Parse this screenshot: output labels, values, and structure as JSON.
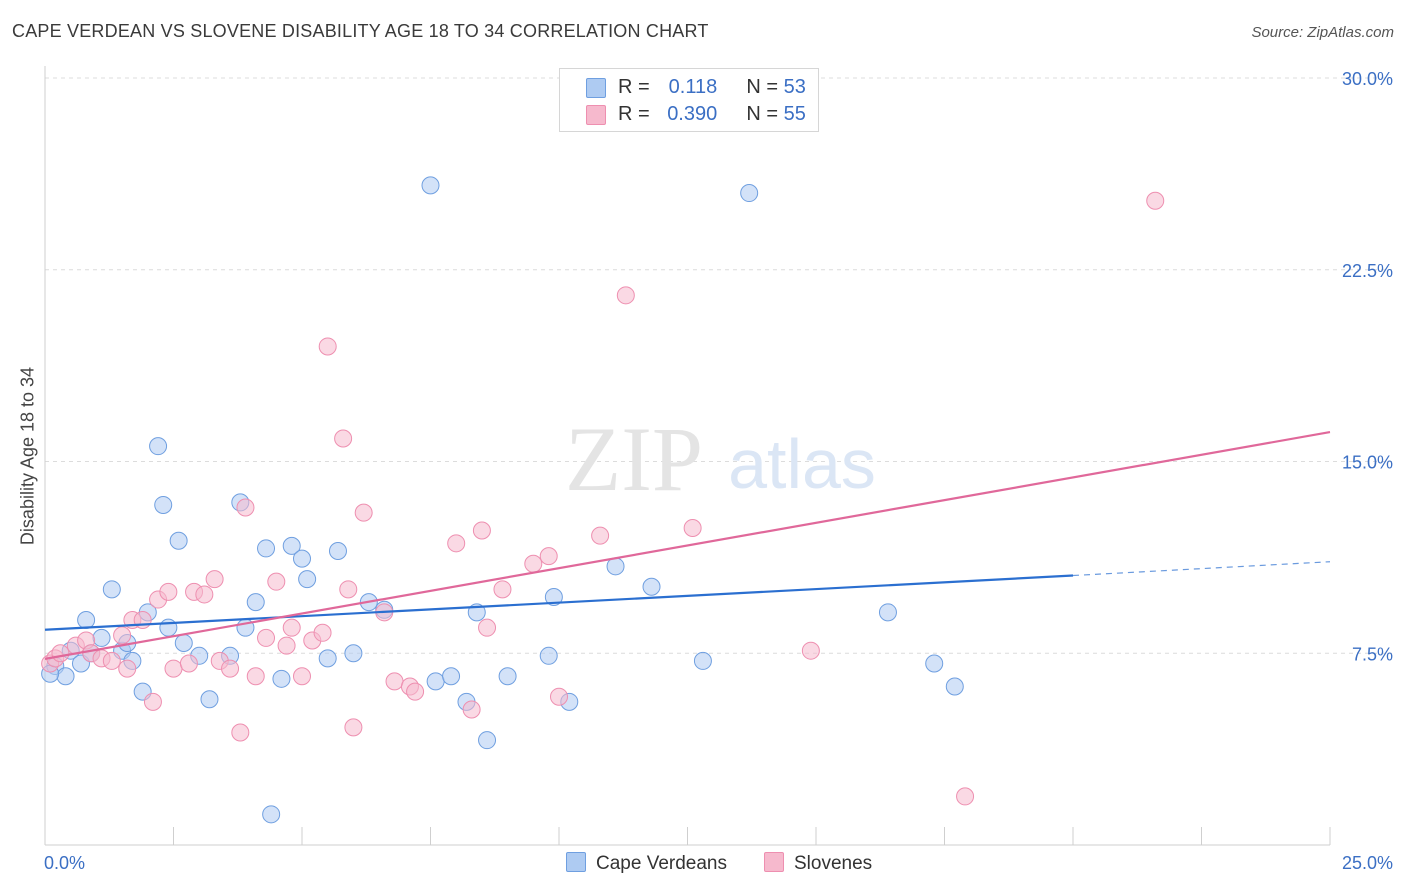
{
  "title": "CAPE VERDEAN VS SLOVENE DISABILITY AGE 18 TO 34 CORRELATION CHART",
  "source": "Source: ZipAtlas.com",
  "watermark": {
    "zip": "ZIP",
    "atlas": "atlas"
  },
  "legend": {
    "rows": [
      {
        "r_label": "R =",
        "r_value": "0.118",
        "n_label": "N =",
        "n_value": "53",
        "color": "#aecbf2"
      },
      {
        "r_label": "R =",
        "r_value": "0.390",
        "n_label": "N =",
        "n_value": "55",
        "color": "#f6b9cd"
      }
    ]
  },
  "bottom_legend": [
    {
      "label": "Cape Verdeans",
      "color": "#aecbf2"
    },
    {
      "label": "Slovenes",
      "color": "#f6b9cd"
    }
  ],
  "chart_data": {
    "type": "scatter",
    "title": "CAPE VERDEAN VS SLOVENE DISABILITY AGE 18 TO 34 CORRELATION CHART",
    "xlabel": "",
    "ylabel": "Disability Age 18 to 34",
    "xlim": [
      0,
      25
    ],
    "ylim": [
      0,
      30
    ],
    "x_tick_labels": [
      "0.0%",
      "25.0%"
    ],
    "y_ticks": [
      7.5,
      15.0,
      22.5,
      30.0
    ],
    "y_tick_labels": [
      "7.5%",
      "15.0%",
      "22.5%",
      "30.0%"
    ],
    "grid": true,
    "legend_position": "top-center",
    "series": [
      {
        "name": "Cape Verdeans",
        "color": "#6f9fe0",
        "fill": "#aecbf2",
        "trend_color": "#2b6fd0",
        "trend": {
          "x": [
            0,
            20
          ],
          "y": [
            8.42,
            10.54
          ]
        },
        "trend_extension": {
          "x": [
            20,
            25
          ],
          "y": [
            10.54,
            11.08
          ]
        },
        "points": [
          [
            0.2,
            7.0
          ],
          [
            0.4,
            6.6
          ],
          [
            0.5,
            7.6
          ],
          [
            0.7,
            7.1
          ],
          [
            0.8,
            8.8
          ],
          [
            0.9,
            7.5
          ],
          [
            1.1,
            8.1
          ],
          [
            1.3,
            10.0
          ],
          [
            1.5,
            7.6
          ],
          [
            1.6,
            7.9
          ],
          [
            1.7,
            7.2
          ],
          [
            1.9,
            6.0
          ],
          [
            2.0,
            9.1
          ],
          [
            2.2,
            15.6
          ],
          [
            2.3,
            13.3
          ],
          [
            2.4,
            8.5
          ],
          [
            2.6,
            11.9
          ],
          [
            2.7,
            7.9
          ],
          [
            3.0,
            7.4
          ],
          [
            3.2,
            5.7
          ],
          [
            3.6,
            7.4
          ],
          [
            3.8,
            13.4
          ],
          [
            3.9,
            8.5
          ],
          [
            4.1,
            9.5
          ],
          [
            4.3,
            11.6
          ],
          [
            4.4,
            1.2
          ],
          [
            4.6,
            6.5
          ],
          [
            4.8,
            11.7
          ],
          [
            5.0,
            11.2
          ],
          [
            5.1,
            10.4
          ],
          [
            5.5,
            7.3
          ],
          [
            5.7,
            11.5
          ],
          [
            6.0,
            7.5
          ],
          [
            6.3,
            9.5
          ],
          [
            6.6,
            9.2
          ],
          [
            7.5,
            25.8
          ],
          [
            7.6,
            6.4
          ],
          [
            7.9,
            6.6
          ],
          [
            8.2,
            5.6
          ],
          [
            8.4,
            9.1
          ],
          [
            8.6,
            4.1
          ],
          [
            9.0,
            6.6
          ],
          [
            9.8,
            7.4
          ],
          [
            9.9,
            9.7
          ],
          [
            10.2,
            5.6
          ],
          [
            11.1,
            10.9
          ],
          [
            11.8,
            10.1
          ],
          [
            12.8,
            7.2
          ],
          [
            13.7,
            25.5
          ],
          [
            16.4,
            9.1
          ],
          [
            17.3,
            7.1
          ],
          [
            17.7,
            6.2
          ],
          [
            0.1,
            6.7
          ]
        ]
      },
      {
        "name": "Slovenes",
        "color": "#ee8fb0",
        "fill": "#f6b9cd",
        "trend_color": "#e0689a",
        "trend": {
          "x": [
            0,
            25
          ],
          "y": [
            7.28,
            16.15
          ]
        },
        "points": [
          [
            0.1,
            7.1
          ],
          [
            0.2,
            7.3
          ],
          [
            0.3,
            7.5
          ],
          [
            0.6,
            7.8
          ],
          [
            0.8,
            8.0
          ],
          [
            0.9,
            7.5
          ],
          [
            1.1,
            7.3
          ],
          [
            1.3,
            7.2
          ],
          [
            1.5,
            8.2
          ],
          [
            1.6,
            6.9
          ],
          [
            1.7,
            8.8
          ],
          [
            1.9,
            8.8
          ],
          [
            2.1,
            5.6
          ],
          [
            2.2,
            9.6
          ],
          [
            2.4,
            9.9
          ],
          [
            2.5,
            6.9
          ],
          [
            2.8,
            7.1
          ],
          [
            2.9,
            9.9
          ],
          [
            3.1,
            9.8
          ],
          [
            3.3,
            10.4
          ],
          [
            3.4,
            7.2
          ],
          [
            3.6,
            6.9
          ],
          [
            3.8,
            4.4
          ],
          [
            3.9,
            13.2
          ],
          [
            4.1,
            6.6
          ],
          [
            4.3,
            8.1
          ],
          [
            4.5,
            10.3
          ],
          [
            4.7,
            7.8
          ],
          [
            4.8,
            8.5
          ],
          [
            5.0,
            6.6
          ],
          [
            5.2,
            8.0
          ],
          [
            5.4,
            8.3
          ],
          [
            5.5,
            19.5
          ],
          [
            5.8,
            15.9
          ],
          [
            5.9,
            10.0
          ],
          [
            6.0,
            4.6
          ],
          [
            6.2,
            13.0
          ],
          [
            6.6,
            9.1
          ],
          [
            6.8,
            6.4
          ],
          [
            7.1,
            6.2
          ],
          [
            7.2,
            6.0
          ],
          [
            8.0,
            11.8
          ],
          [
            8.3,
            5.3
          ],
          [
            8.5,
            12.3
          ],
          [
            8.6,
            8.5
          ],
          [
            8.9,
            10.0
          ],
          [
            9.5,
            11.0
          ],
          [
            9.8,
            11.3
          ],
          [
            10.0,
            5.8
          ],
          [
            10.8,
            12.1
          ],
          [
            11.3,
            21.5
          ],
          [
            12.6,
            12.4
          ],
          [
            14.9,
            7.6
          ],
          [
            17.9,
            1.9
          ],
          [
            21.6,
            25.2
          ]
        ]
      }
    ]
  }
}
